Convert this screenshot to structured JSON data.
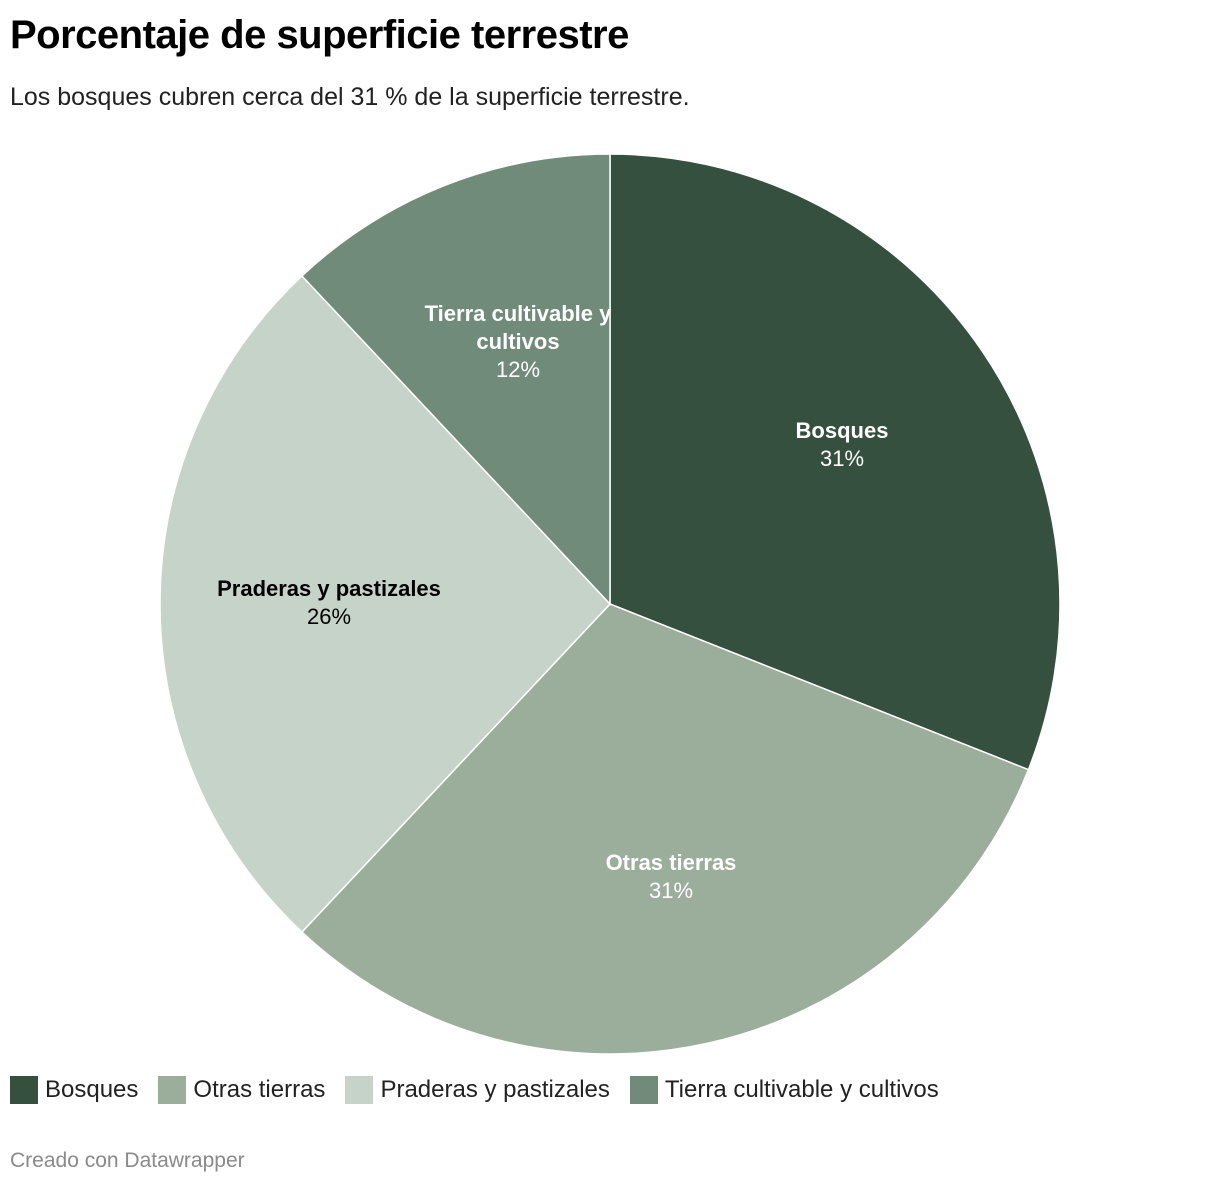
{
  "chart_data": {
    "type": "pie",
    "title": "Porcentaje de superficie terrestre",
    "subtitle": "Los bosques cubren cerca del 31 % de la superficie terrestre.",
    "slices": [
      {
        "name": "Bosques",
        "value": 31,
        "label": "31%",
        "color": "#36503f",
        "label_color": "#ffffff"
      },
      {
        "name": "Otras tierras",
        "value": 31,
        "label": "31%",
        "color": "#9aae9b",
        "label_color": "#ffffff"
      },
      {
        "name": "Praderas y pastizales",
        "value": 26,
        "label": "26%",
        "color": "#c6d3c8",
        "label_color": "#000000"
      },
      {
        "name": "Tierra cultivable y cultivos",
        "value": 12,
        "label": "12%",
        "color": "#718b7a",
        "label_color": "#ffffff"
      }
    ],
    "legend_position": "bottom-left",
    "start": "top, clockwise"
  },
  "footer": "Creado con Datawrapper"
}
